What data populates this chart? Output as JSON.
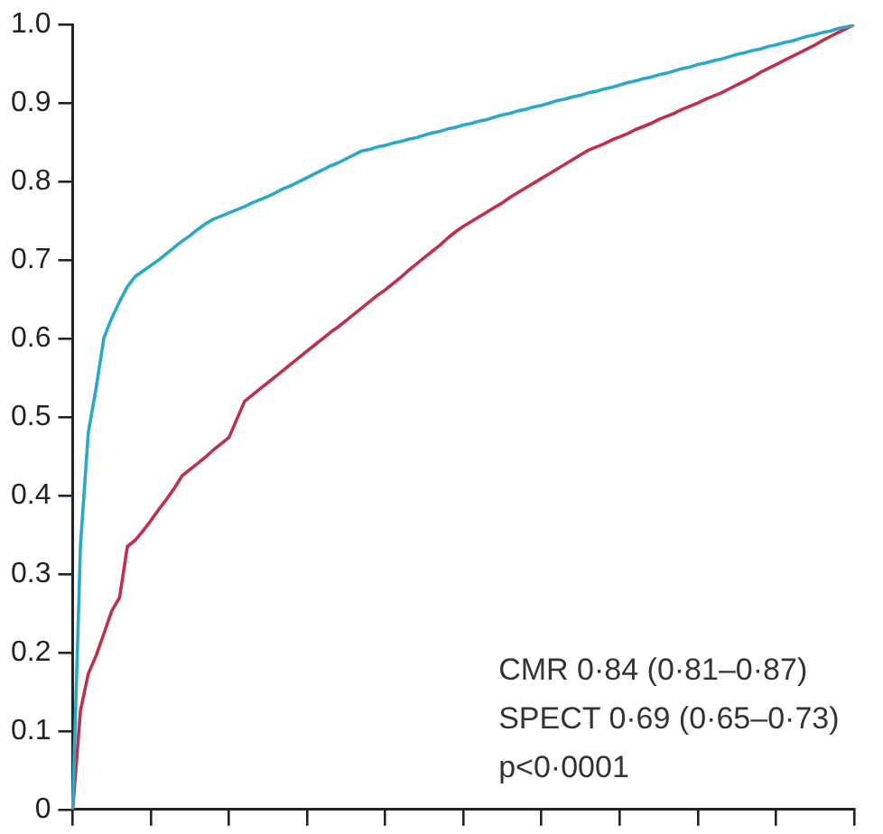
{
  "chart_data": {
    "type": "line",
    "categories": [
      null,
      null,
      null,
      null,
      null,
      null,
      null,
      null,
      null,
      null,
      null,
      null,
      null,
      null,
      null,
      null,
      null,
      null,
      null,
      null,
      null,
      null,
      null,
      null,
      null,
      null,
      null,
      null,
      null,
      null,
      null,
      null,
      null,
      null,
      null,
      null,
      null,
      null,
      null,
      null,
      null,
      null,
      null,
      null,
      null,
      null,
      null,
      null,
      null,
      null,
      null,
      null,
      null,
      null,
      null,
      null,
      null,
      null,
      null,
      null,
      null,
      null,
      null,
      null,
      null,
      null,
      null,
      null,
      null,
      null,
      null,
      null,
      null,
      null,
      null,
      null,
      null,
      null,
      null,
      null,
      null,
      null,
      null,
      null,
      null,
      null,
      null,
      null,
      null,
      null,
      null,
      null,
      null,
      null,
      null,
      null,
      null,
      null,
      null,
      null,
      null
    ],
    "ylim": [
      0,
      1
    ],
    "yticks": [
      0,
      0.1,
      0.2,
      0.3,
      0.4,
      0.5,
      0.6,
      0.7,
      0.8,
      0.9,
      {
        "value": 1,
        "label": "1.0"
      }
    ],
    "tick_labels": "y",
    "grid": false,
    "legend": false,
    "marker": "none",
    "line_style": "solid",
    "series": [
      {
        "color": "#2aa8c8",
        "values": [
          0,
          0.337,
          0.48,
          0.537,
          0.601,
          0.626,
          0.647,
          0.666,
          0.679,
          0.686,
          0.693,
          0.7,
          0.708,
          0.716,
          0.724,
          0.731,
          0.739,
          0.746,
          0.752,
          0.756,
          0.76,
          0.764,
          0.768,
          0.773,
          0.777,
          0.781,
          0.786,
          0.791,
          0.795,
          0.8,
          0.805,
          0.81,
          0.815,
          0.82,
          0.824,
          0.829,
          0.834,
          0.839,
          0.841,
          0.844,
          0.846,
          0.849,
          0.851,
          0.854,
          0.856,
          0.859,
          0.862,
          0.864,
          0.867,
          0.869,
          0.872,
          0.874,
          0.877,
          0.879,
          0.882,
          0.885,
          0.887,
          0.89,
          0.892,
          0.895,
          0.897,
          0.9,
          0.903,
          0.905,
          0.908,
          0.91,
          0.913,
          0.915,
          0.918,
          0.92,
          0.923,
          0.926,
          0.928,
          0.931,
          0.933,
          0.936,
          0.938,
          0.941,
          0.944,
          0.946,
          0.949,
          0.951,
          0.954,
          0.956,
          0.959,
          0.962,
          0.964,
          0.967,
          0.969,
          0.972,
          0.974,
          0.977,
          0.979,
          0.982,
          0.985,
          0.987,
          0.99,
          0.992,
          0.995,
          0.997,
          1
        ]
      },
      {
        "color": "#c0304a",
        "values": [
          0,
          0.126,
          0.173,
          0.196,
          0.224,
          0.253,
          0.27,
          0.335,
          0.343,
          0.355,
          0.368,
          0.382,
          0.395,
          0.409,
          0.425,
          0.433,
          0.441,
          0.449,
          0.458,
          0.466,
          0.474,
          0.497,
          0.52,
          0.528,
          0.536,
          0.544,
          0.552,
          0.56,
          0.568,
          0.576,
          0.584,
          0.592,
          0.6,
          0.608,
          0.615,
          0.623,
          0.631,
          0.639,
          0.647,
          0.655,
          0.662,
          0.67,
          0.678,
          0.687,
          0.695,
          0.703,
          0.711,
          0.719,
          0.728,
          0.736,
          0.743,
          0.749,
          0.755,
          0.761,
          0.767,
          0.773,
          0.78,
          0.786,
          0.792,
          0.798,
          0.804,
          0.81,
          0.816,
          0.822,
          0.828,
          0.834,
          0.84,
          0.844,
          0.848,
          0.853,
          0.857,
          0.861,
          0.866,
          0.87,
          0.874,
          0.879,
          0.883,
          0.887,
          0.892,
          0.896,
          0.9,
          0.905,
          0.909,
          0.913,
          0.918,
          0.923,
          0.928,
          0.933,
          0.939,
          0.944,
          0.949,
          0.954,
          0.959,
          0.964,
          0.969,
          0.974,
          0.98,
          0.985,
          0.99,
          0.995,
          1
        ]
      }
    ],
    "annotations": [
      "CMR 0·84 (0·81–0·87)",
      "SPECT 0·69 (0·65–0·73)",
      "p<0·0001"
    ]
  }
}
